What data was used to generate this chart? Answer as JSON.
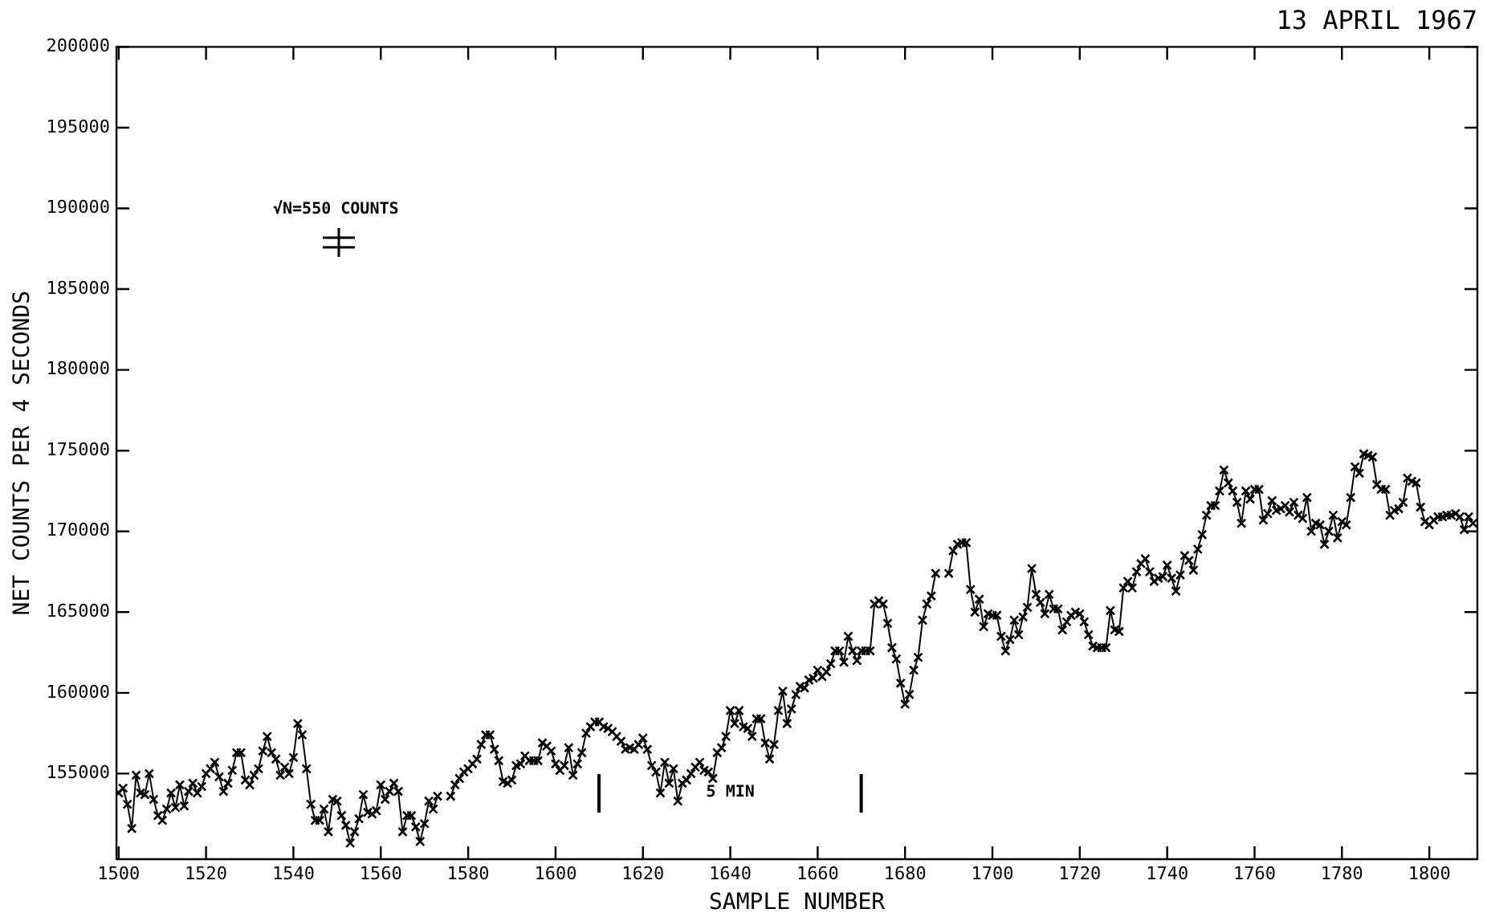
{
  "chart_data": {
    "type": "line",
    "title": "13 APRIL 1967",
    "xlabel": "SAMPLE NUMBER",
    "ylabel": "NET COUNTS PER 4 SECONDS",
    "x": [
      1500,
      1501,
      1502,
      1503,
      1504,
      1505,
      1506,
      1507,
      1508,
      1509,
      1510,
      1511,
      1512,
      1513,
      1514,
      1515,
      1516,
      1517,
      1518,
      1519,
      1520,
      1521,
      1522,
      1523,
      1524,
      1525,
      1526,
      1527,
      1528,
      1529,
      1530,
      1531,
      1532,
      1533,
      1534,
      1535,
      1536,
      1537,
      1538,
      1539,
      1540,
      1541,
      1542,
      1543,
      1544,
      1545,
      1546,
      1547,
      1548,
      1549,
      1550,
      1551,
      1552,
      1553,
      1554,
      1555,
      1556,
      1557,
      1558,
      1559,
      1560,
      1561,
      1562,
      1563,
      1564,
      1565,
      1566,
      1567,
      1568,
      1569,
      1570,
      1571,
      1572,
      1573,
      1574,
      1576,
      1577,
      1578,
      1579,
      1580,
      1581,
      1582,
      1583,
      1584,
      1585,
      1586,
      1587,
      1588,
      1589,
      1590,
      1591,
      1592,
      1593,
      1594,
      1595,
      1596,
      1597,
      1598,
      1599,
      1600,
      1601,
      1602,
      1603,
      1604,
      1605,
      1606,
      1607,
      1608,
      1609,
      1610,
      1611,
      1612,
      1613,
      1614,
      1615,
      1616,
      1617,
      1618,
      1619,
      1620,
      1621,
      1622,
      1623,
      1624,
      1625,
      1626,
      1627,
      1628,
      1629,
      1630,
      1631,
      1632,
      1633,
      1634,
      1635,
      1636,
      1637,
      1638,
      1639,
      1640,
      1641,
      1642,
      1643,
      1644,
      1645,
      1646,
      1647,
      1648,
      1649,
      1650,
      1651,
      1652,
      1653,
      1654,
      1655,
      1656,
      1657,
      1658,
      1659,
      1660,
      1661,
      1662,
      1663,
      1664,
      1665,
      1666,
      1667,
      1668,
      1669,
      1670,
      1671,
      1672,
      1673,
      1674,
      1675,
      1676,
      1677,
      1678,
      1679,
      1680,
      1681,
      1682,
      1683,
      1684,
      1685,
      1686,
      1687,
      1688,
      1690,
      1691,
      1692,
      1693,
      1694,
      1695,
      1696,
      1697,
      1698,
      1699,
      1700,
      1701,
      1702,
      1703,
      1704,
      1705,
      1706,
      1707,
      1708,
      1709,
      1710,
      1711,
      1712,
      1713,
      1714,
      1715,
      1716,
      1717,
      1718,
      1719,
      1720,
      1721,
      1722,
      1723,
      1724,
      1725,
      1726,
      1727,
      1728,
      1729,
      1730,
      1731,
      1732,
      1733,
      1734,
      1735,
      1736,
      1737,
      1738,
      1739,
      1740,
      1741,
      1742,
      1743,
      1744,
      1745,
      1746,
      1747,
      1748,
      1749,
      1750,
      1751,
      1752,
      1753,
      1754,
      1755,
      1756,
      1757,
      1758,
      1759,
      1760,
      1761,
      1762,
      1763,
      1764,
      1765,
      1766,
      1767,
      1768,
      1769,
      1770,
      1771,
      1772,
      1773,
      1774,
      1775,
      1776,
      1777,
      1778,
      1779,
      1780,
      1781,
      1782,
      1783,
      1784,
      1785,
      1786,
      1787,
      1788,
      1789,
      1790,
      1791,
      1792,
      1793,
      1794,
      1795,
      1796,
      1797,
      1798,
      1799,
      1800,
      1801,
      1802,
      1803,
      1804,
      1805,
      1806,
      1807,
      1808,
      1809,
      1810
    ],
    "values": [
      153800,
      154100,
      153100,
      151600,
      154900,
      153800,
      153700,
      155000,
      153400,
      152400,
      152100,
      152800,
      153800,
      152900,
      154300,
      153000,
      153900,
      154400,
      153800,
      154200,
      155000,
      155300,
      155700,
      154800,
      153900,
      154400,
      155200,
      156300,
      156300,
      154600,
      154300,
      154900,
      155300,
      156400,
      157300,
      156300,
      155900,
      154900,
      155400,
      155000,
      156000,
      158100,
      157400,
      155300,
      153100,
      152100,
      152100,
      152800,
      151400,
      153400,
      153300,
      152400,
      151800,
      150700,
      151400,
      152200,
      153700,
      152600,
      152500,
      152700,
      154300,
      153400,
      153900,
      154400,
      153900,
      151400,
      152400,
      152400,
      151700,
      150800,
      151900,
      153300,
      152800,
      153600,
      null,
      153600,
      154300,
      154700,
      155100,
      155300,
      155600,
      155900,
      156800,
      157400,
      157400,
      156500,
      155800,
      154500,
      154400,
      154600,
      155500,
      155600,
      156100,
      155800,
      155800,
      155800,
      156900,
      156700,
      156400,
      155600,
      155200,
      155500,
      156600,
      154900,
      155600,
      156300,
      157500,
      157900,
      158200,
      158200,
      157900,
      157800,
      157600,
      157300,
      157000,
      156500,
      156600,
      156500,
      156800,
      157200,
      156500,
      155500,
      155100,
      153800,
      155700,
      154400,
      155300,
      153300,
      154400,
      154600,
      155000,
      155400,
      155700,
      155200,
      155100,
      154700,
      156300,
      156600,
      157300,
      158900,
      158100,
      158900,
      157900,
      157800,
      157300,
      158400,
      158400,
      156900,
      155900,
      156800,
      158900,
      160100,
      158100,
      159000,
      159900,
      160400,
      160300,
      160800,
      160900,
      161400,
      161000,
      161300,
      161800,
      162600,
      162600,
      161900,
      163500,
      162600,
      162000,
      162600,
      162600,
      162600,
      165500,
      165700,
      165500,
      164300,
      162800,
      162100,
      160600,
      159300,
      159900,
      161400,
      162200,
      164500,
      165500,
      166000,
      167400,
      null,
      167400,
      168800,
      169200,
      169300,
      169300,
      166400,
      165000,
      165800,
      164100,
      164900,
      164800,
      164800,
      163500,
      162600,
      163300,
      164500,
      163600,
      164700,
      165300,
      167700,
      166100,
      165600,
      164900,
      166100,
      165200,
      165200,
      163900,
      164400,
      164800,
      165000,
      164900,
      164400,
      163600,
      162900,
      162800,
      162800,
      162800,
      165100,
      163900,
      163800,
      166500,
      166900,
      166500,
      167500,
      168000,
      168300,
      167500,
      166900,
      167100,
      167200,
      167900,
      167100,
      166300,
      167300,
      168500,
      168200,
      167600,
      168900,
      169800,
      171000,
      171600,
      171600,
      172500,
      173800,
      173000,
      172500,
      171800,
      170500,
      172500,
      172000,
      172600,
      172600,
      170700,
      171100,
      171900,
      171300,
      171400,
      171600,
      171200,
      171800,
      171000,
      170800,
      172100,
      170000,
      170500,
      170400,
      169200,
      170000,
      171000,
      169600,
      170600,
      170400,
      172100,
      174000,
      173600,
      174800,
      174700,
      174600,
      172900,
      172600,
      172600,
      171000,
      171300,
      171400,
      171800,
      173300,
      173100,
      173000,
      171500,
      170600,
      170400,
      170700,
      170900,
      170900,
      171000,
      171000,
      171100,
      170900,
      170100,
      170900,
      170500
    ],
    "color": "#000000",
    "marker": "cross",
    "xlim": [
      1499.5,
      1811
    ],
    "xticks": [
      1500,
      1520,
      1540,
      1560,
      1580,
      1600,
      1620,
      1640,
      1660,
      1680,
      1700,
      1720,
      1740,
      1760,
      1780,
      1800
    ],
    "ylim": [
      149700,
      200000
    ],
    "yticks": [
      155000,
      160000,
      165000,
      170000,
      175000,
      180000,
      185000,
      190000,
      195000,
      200000
    ],
    "annotations": [
      "√N=550 COUNTS",
      "5 MIN"
    ],
    "legend": false
  }
}
